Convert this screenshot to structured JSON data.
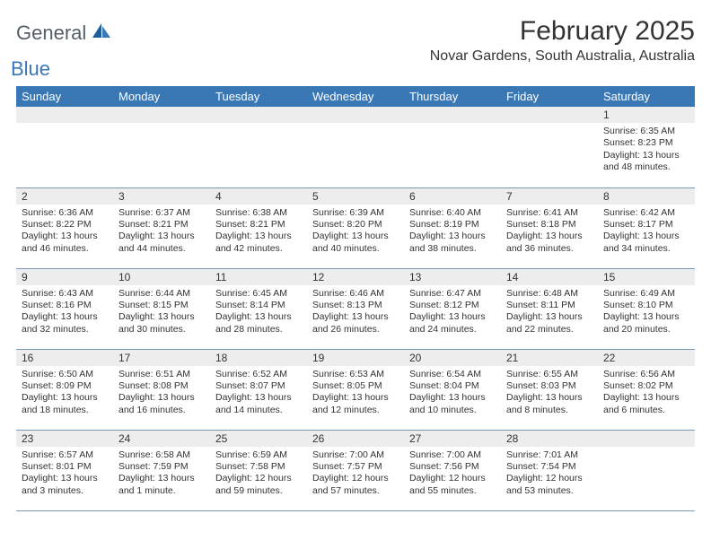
{
  "brand": {
    "general": "General",
    "blue": "Blue"
  },
  "title": "February 2025",
  "location": "Novar Gardens, South Australia, Australia",
  "colors": {
    "header_bg": "#3a78b5",
    "header_text": "#ffffff",
    "daynum_bg": "#ededed",
    "rule": "#7a98b5",
    "text": "#333333",
    "logo_gray": "#555e66",
    "logo_blue": "#3a78b5"
  },
  "weekdays": [
    "Sunday",
    "Monday",
    "Tuesday",
    "Wednesday",
    "Thursday",
    "Friday",
    "Saturday"
  ],
  "grid": [
    [
      null,
      null,
      null,
      null,
      null,
      null,
      {
        "n": "1",
        "sr": "6:35 AM",
        "ss": "8:23 PM",
        "dl": "13 hours and 48 minutes."
      }
    ],
    [
      {
        "n": "2",
        "sr": "6:36 AM",
        "ss": "8:22 PM",
        "dl": "13 hours and 46 minutes."
      },
      {
        "n": "3",
        "sr": "6:37 AM",
        "ss": "8:21 PM",
        "dl": "13 hours and 44 minutes."
      },
      {
        "n": "4",
        "sr": "6:38 AM",
        "ss": "8:21 PM",
        "dl": "13 hours and 42 minutes."
      },
      {
        "n": "5",
        "sr": "6:39 AM",
        "ss": "8:20 PM",
        "dl": "13 hours and 40 minutes."
      },
      {
        "n": "6",
        "sr": "6:40 AM",
        "ss": "8:19 PM",
        "dl": "13 hours and 38 minutes."
      },
      {
        "n": "7",
        "sr": "6:41 AM",
        "ss": "8:18 PM",
        "dl": "13 hours and 36 minutes."
      },
      {
        "n": "8",
        "sr": "6:42 AM",
        "ss": "8:17 PM",
        "dl": "13 hours and 34 minutes."
      }
    ],
    [
      {
        "n": "9",
        "sr": "6:43 AM",
        "ss": "8:16 PM",
        "dl": "13 hours and 32 minutes."
      },
      {
        "n": "10",
        "sr": "6:44 AM",
        "ss": "8:15 PM",
        "dl": "13 hours and 30 minutes."
      },
      {
        "n": "11",
        "sr": "6:45 AM",
        "ss": "8:14 PM",
        "dl": "13 hours and 28 minutes."
      },
      {
        "n": "12",
        "sr": "6:46 AM",
        "ss": "8:13 PM",
        "dl": "13 hours and 26 minutes."
      },
      {
        "n": "13",
        "sr": "6:47 AM",
        "ss": "8:12 PM",
        "dl": "13 hours and 24 minutes."
      },
      {
        "n": "14",
        "sr": "6:48 AM",
        "ss": "8:11 PM",
        "dl": "13 hours and 22 minutes."
      },
      {
        "n": "15",
        "sr": "6:49 AM",
        "ss": "8:10 PM",
        "dl": "13 hours and 20 minutes."
      }
    ],
    [
      {
        "n": "16",
        "sr": "6:50 AM",
        "ss": "8:09 PM",
        "dl": "13 hours and 18 minutes."
      },
      {
        "n": "17",
        "sr": "6:51 AM",
        "ss": "8:08 PM",
        "dl": "13 hours and 16 minutes."
      },
      {
        "n": "18",
        "sr": "6:52 AM",
        "ss": "8:07 PM",
        "dl": "13 hours and 14 minutes."
      },
      {
        "n": "19",
        "sr": "6:53 AM",
        "ss": "8:05 PM",
        "dl": "13 hours and 12 minutes."
      },
      {
        "n": "20",
        "sr": "6:54 AM",
        "ss": "8:04 PM",
        "dl": "13 hours and 10 minutes."
      },
      {
        "n": "21",
        "sr": "6:55 AM",
        "ss": "8:03 PM",
        "dl": "13 hours and 8 minutes."
      },
      {
        "n": "22",
        "sr": "6:56 AM",
        "ss": "8:02 PM",
        "dl": "13 hours and 6 minutes."
      }
    ],
    [
      {
        "n": "23",
        "sr": "6:57 AM",
        "ss": "8:01 PM",
        "dl": "13 hours and 3 minutes."
      },
      {
        "n": "24",
        "sr": "6:58 AM",
        "ss": "7:59 PM",
        "dl": "13 hours and 1 minute."
      },
      {
        "n": "25",
        "sr": "6:59 AM",
        "ss": "7:58 PM",
        "dl": "12 hours and 59 minutes."
      },
      {
        "n": "26",
        "sr": "7:00 AM",
        "ss": "7:57 PM",
        "dl": "12 hours and 57 minutes."
      },
      {
        "n": "27",
        "sr": "7:00 AM",
        "ss": "7:56 PM",
        "dl": "12 hours and 55 minutes."
      },
      {
        "n": "28",
        "sr": "7:01 AM",
        "ss": "7:54 PM",
        "dl": "12 hours and 53 minutes."
      },
      null
    ]
  ],
  "labels": {
    "sunrise": "Sunrise:",
    "sunset": "Sunset:",
    "daylight": "Daylight:"
  }
}
